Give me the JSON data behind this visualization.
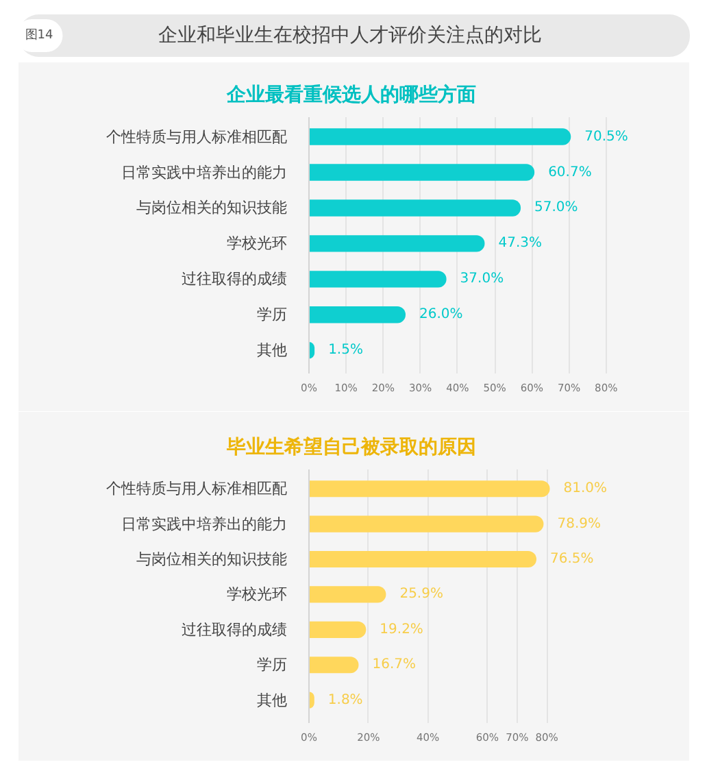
{
  "chart_data": [
    {
      "type": "bar",
      "orientation": "horizontal",
      "title": "企业和毕业生在校招中人才评价关注点的对比",
      "subtitle": "企业最看重候选人的哪些方面",
      "annotations": [
        "图14"
      ],
      "categories": [
        "个性特质与用人标准相匹配",
        "日常实践中培养出的能力",
        "与岗位相关的知识技能",
        "学校光环",
        "过往取得的成绩",
        "学历",
        "其他"
      ],
      "values": [
        70.5,
        60.7,
        57.0,
        47.3,
        37.0,
        26.0,
        1.5
      ],
      "value_labels": [
        "70.5%",
        "60.7%",
        "57.0%",
        "47.3%",
        "37.0%",
        "26.0%",
        "1.5%"
      ],
      "color": "#0fcfd0",
      "xlim": [
        0,
        90
      ],
      "xticks": [
        {
          "value": 0,
          "label": "0%"
        },
        {
          "value": 10,
          "label": "10%"
        },
        {
          "value": 20,
          "label": "20%"
        },
        {
          "value": 30,
          "label": "30%"
        },
        {
          "value": 40,
          "label": "40%"
        },
        {
          "value": 50,
          "label": "50%"
        },
        {
          "value": 60,
          "label": "60%"
        },
        {
          "value": 70,
          "label": "70%"
        },
        {
          "value": 80,
          "label": "80%"
        }
      ],
      "grid": "x"
    },
    {
      "type": "bar",
      "orientation": "horizontal",
      "subtitle": "毕业生希望自己被录取的原因",
      "categories": [
        "个性特质与用人标准相匹配",
        "日常实践中培养出的能力",
        "与岗位相关的知识技能",
        "学校光环",
        "过往取得的成绩",
        "学历",
        "其他"
      ],
      "values": [
        81.0,
        78.9,
        76.5,
        25.9,
        19.2,
        16.7,
        1.8
      ],
      "value_labels": [
        "81.0%",
        "78.9%",
        "76.5%",
        "25.9%",
        "19.2%",
        "16.7%",
        "1.8%"
      ],
      "color": "#ffd75c",
      "xlim": [
        0,
        100
      ],
      "xticks": [
        {
          "value": 0,
          "label": "0%"
        },
        {
          "value": 20,
          "label": "20%"
        },
        {
          "value": 40,
          "label": "40%"
        },
        {
          "value": 60,
          "label": "60%"
        },
        {
          "value": 70,
          "label": "70%"
        },
        {
          "value": 80,
          "label": "80%"
        },
        {
          "value": 100,
          "label": null
        }
      ],
      "grid": "x"
    }
  ]
}
